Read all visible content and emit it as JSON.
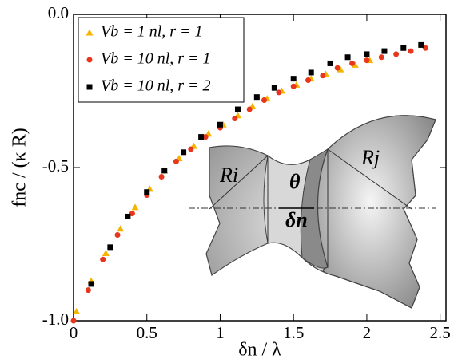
{
  "chart_data": {
    "type": "scatter",
    "x_label": "δn / λ",
    "y_label": "fnc / (κ R)",
    "xlim": [
      0,
      2.54
    ],
    "ylim": [
      -1.0,
      0.0
    ],
    "xticks": [
      0,
      0.5,
      1,
      1.5,
      2,
      2.5
    ],
    "yticks": [
      {
        "value": 0.0,
        "label": "0.0"
      },
      {
        "value": -0.5,
        "label": "-0.5"
      },
      {
        "value": -1.0,
        "label": "-1.0"
      }
    ],
    "legend": "upper left",
    "series": [
      {
        "name": "Vb = 1 nl,   r = 1",
        "color": "#f5b400",
        "marker": "triangle",
        "x": [
          0.02,
          0.12,
          0.22,
          0.32,
          0.42,
          0.52,
          0.62,
          0.72,
          0.82,
          0.92,
          1.02,
          1.12,
          1.22,
          1.32,
          1.42,
          1.52,
          1.62,
          1.72,
          1.82,
          1.92,
          2.02
        ],
        "values": [
          -0.97,
          -0.87,
          -0.78,
          -0.7,
          -0.63,
          -0.57,
          -0.51,
          -0.47,
          -0.43,
          -0.39,
          -0.36,
          -0.33,
          -0.3,
          -0.275,
          -0.25,
          -0.23,
          -0.21,
          -0.195,
          -0.18,
          -0.165,
          -0.15
        ]
      },
      {
        "name": "Vb = 10 nl, r = 1",
        "color": "#e8361c",
        "marker": "circle",
        "x": [
          0.0,
          0.1,
          0.2,
          0.3,
          0.4,
          0.5,
          0.6,
          0.7,
          0.8,
          0.9,
          1.0,
          1.1,
          1.2,
          1.3,
          1.4,
          1.5,
          1.6,
          1.7,
          1.8,
          1.9,
          2.0,
          2.1,
          2.2,
          2.3,
          2.4
        ],
        "values": [
          -1.0,
          -0.9,
          -0.8,
          -0.72,
          -0.65,
          -0.59,
          -0.53,
          -0.48,
          -0.44,
          -0.4,
          -0.37,
          -0.34,
          -0.31,
          -0.28,
          -0.255,
          -0.235,
          -0.215,
          -0.2,
          -0.175,
          -0.16,
          -0.15,
          -0.14,
          -0.13,
          -0.12,
          -0.11
        ]
      },
      {
        "name": "Vb = 10 nl, r = 2",
        "color": "#000000",
        "marker": "square",
        "x": [
          0.12,
          0.25,
          0.37,
          0.5,
          0.62,
          0.75,
          0.87,
          1.0,
          1.12,
          1.25,
          1.37,
          1.5,
          1.62,
          1.75,
          1.87,
          2.0,
          2.12,
          2.25,
          2.37
        ],
        "values": [
          -0.88,
          -0.76,
          -0.66,
          -0.58,
          -0.51,
          -0.45,
          -0.4,
          -0.36,
          -0.31,
          -0.27,
          -0.24,
          -0.21,
          -0.19,
          -0.16,
          -0.14,
          -0.13,
          -0.12,
          -0.11,
          -0.1
        ]
      }
    ]
  },
  "inset": {
    "label_ri": "Ri",
    "label_rj": "Rj",
    "label_theta": "θ",
    "label_delta": "δn"
  }
}
